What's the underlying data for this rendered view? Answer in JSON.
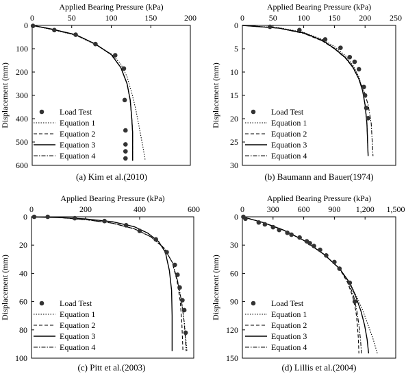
{
  "figure": {
    "marker_color": "#333333",
    "line_color": "#000000"
  },
  "chart_data": [
    {
      "id": "a",
      "type": "scatter",
      "caption": "(a)  Kim et al.(2010)",
      "xlabel": "Applied Bearing Pressure (kPa)",
      "ylabel": "Displacement (mm)",
      "xlim": [
        0,
        200
      ],
      "ylim": [
        0,
        600
      ],
      "xticks": [
        "0",
        "50",
        "100",
        "150",
        "200"
      ],
      "yticks": [
        "0",
        "100",
        "200",
        "300",
        "400",
        "500",
        "600"
      ],
      "legend_entries": [
        "Load Test",
        "Equation 1",
        "Equation 2",
        "Equation 3",
        "Equation 4"
      ],
      "load_test": {
        "x": [
          1,
          28,
          55,
          80,
          105,
          116,
          117,
          118,
          118,
          118,
          118
        ],
        "y": [
          2,
          20,
          40,
          80,
          128,
          185,
          320,
          450,
          510,
          540,
          570
        ]
      },
      "series": [
        {
          "name": "Equation 1",
          "x": [
            0,
            25,
            55,
            80,
            100,
            112,
            120,
            126,
            131,
            135,
            140,
            143
          ],
          "y": [
            0,
            18,
            42,
            82,
            122,
            165,
            220,
            290,
            360,
            430,
            520,
            580
          ]
        },
        {
          "name": "Equation 2",
          "x": [
            0,
            25,
            55,
            80,
            100,
            112,
            120,
            124,
            126,
            127,
            127,
            127
          ],
          "y": [
            0,
            17,
            40,
            80,
            125,
            180,
            250,
            320,
            400,
            460,
            520,
            580
          ]
        },
        {
          "name": "Equation 3",
          "x": [
            0,
            25,
            55,
            80,
            100,
            112,
            120,
            124,
            126,
            127,
            127,
            127
          ],
          "y": [
            0,
            16,
            40,
            80,
            125,
            180,
            250,
            320,
            400,
            460,
            520,
            580
          ]
        },
        {
          "name": "Equation 4",
          "x": [
            0,
            25,
            55,
            80,
            100,
            112,
            120,
            124,
            126,
            127,
            127,
            127
          ],
          "y": [
            0,
            17,
            41,
            81,
            126,
            181,
            251,
            321,
            401,
            461,
            521,
            581
          ]
        }
      ]
    },
    {
      "id": "b",
      "type": "scatter",
      "caption": "(b)  Baumann  and  Bauer(1974)",
      "xlabel": "Applied Bearing Pressure (kPa)",
      "ylabel": "Displacement (mm)",
      "xlim": [
        0,
        250
      ],
      "ylim": [
        0,
        30
      ],
      "xticks": [
        "0",
        "50",
        "100",
        "150",
        "200",
        "250"
      ],
      "yticks": [
        "0",
        "5",
        "10",
        "15",
        "20",
        "25",
        "30"
      ],
      "legend_entries": [
        "Load Test",
        "Equation 1",
        "Equation 2",
        "Equation 3",
        "Equation 4"
      ],
      "load_test": {
        "x": [
          45,
          93,
          135,
          160,
          175,
          183,
          190,
          198,
          200,
          202,
          205
        ],
        "y": [
          0.3,
          1.0,
          3.0,
          4.8,
          6.8,
          7.8,
          9.4,
          13.2,
          15.0,
          17.7,
          19.9
        ]
      },
      "series": [
        {
          "name": "Equation 1",
          "x": [
            0,
            60,
            100,
            130,
            150,
            168,
            180,
            190,
            196,
            200,
            203,
            205
          ],
          "y": [
            0,
            0.5,
            1.5,
            3.0,
            4.5,
            6.5,
            8.5,
            11.0,
            14.0,
            17.0,
            21.0,
            28.0
          ]
        },
        {
          "name": "Equation 2",
          "x": [
            0,
            60,
            100,
            130,
            150,
            168,
            180,
            190,
            196,
            200,
            203,
            205
          ],
          "y": [
            0,
            0.6,
            1.7,
            3.3,
            5.0,
            7.0,
            9.0,
            11.5,
            14.0,
            17.0,
            21.0,
            28.0
          ]
        },
        {
          "name": "Equation 3",
          "x": [
            0,
            60,
            100,
            130,
            150,
            168,
            180,
            190,
            196,
            200,
            203,
            205
          ],
          "y": [
            0,
            0.6,
            1.6,
            3.2,
            4.9,
            6.9,
            8.9,
            11.5,
            14.0,
            17.0,
            21.0,
            28.0
          ]
        },
        {
          "name": "Equation 4",
          "x": [
            0,
            60,
            100,
            130,
            150,
            168,
            180,
            190,
            198,
            205,
            210,
            213
          ],
          "y": [
            0,
            0.6,
            1.7,
            3.3,
            5.0,
            7.0,
            9.0,
            11.5,
            14.0,
            17.0,
            21.0,
            28.0
          ]
        }
      ]
    },
    {
      "id": "c",
      "type": "scatter",
      "caption": "(c)  Pitt et al.(2003)",
      "xlabel": "Applied Bearing Pressure (kPa)",
      "ylabel": "Displacement (mm)",
      "xlim": [
        0,
        600
      ],
      "ylim": [
        0,
        100
      ],
      "xticks": [
        "0",
        "200",
        "400",
        "600"
      ],
      "yticks": [
        "0",
        "20",
        "40",
        "60",
        "80",
        "100"
      ],
      "legend_entries": [
        "Load Test",
        "Equation 1",
        "Equation 2",
        "Equation 3",
        "Equation 4"
      ],
      "load_test": {
        "x": [
          10,
          60,
          160,
          270,
          350,
          400,
          460,
          500,
          530,
          540,
          548,
          558,
          565,
          570
        ],
        "y": [
          0,
          0,
          1,
          3,
          6,
          10,
          16,
          25,
          34,
          41,
          50,
          59,
          66,
          82
        ]
      },
      "series": [
        {
          "name": "Equation 1",
          "x": [
            0,
            100,
            200,
            300,
            380,
            440,
            490,
            520,
            540,
            555,
            565,
            575
          ],
          "y": [
            0,
            0.5,
            2,
            4.5,
            8.5,
            14,
            22,
            32,
            45,
            60,
            75,
            95
          ]
        },
        {
          "name": "Equation 2",
          "x": [
            0,
            100,
            200,
            300,
            380,
            440,
            490,
            520,
            538,
            550,
            556,
            560
          ],
          "y": [
            0,
            0.5,
            2,
            4.5,
            8.5,
            14,
            22,
            32,
            45,
            60,
            75,
            95
          ]
        },
        {
          "name": "Equation 3",
          "x": [
            0,
            100,
            200,
            300,
            380,
            430,
            470,
            495,
            510,
            518,
            520,
            520
          ],
          "y": [
            0,
            0.5,
            1.5,
            3.5,
            7,
            11.5,
            17.5,
            25,
            38,
            52,
            70,
            95
          ]
        },
        {
          "name": "Equation 4",
          "x": [
            0,
            100,
            200,
            300,
            380,
            440,
            490,
            520,
            540,
            555,
            565,
            572
          ],
          "y": [
            0,
            0.5,
            2,
            4.5,
            8.5,
            14,
            22,
            32,
            45,
            60,
            75,
            95
          ]
        }
      ]
    },
    {
      "id": "d",
      "type": "scatter",
      "caption": "(d)  Lillis et al.(2004)",
      "xlabel": "Applied Bearing Pressure (kPa)",
      "ylabel": "Displacement (mm)",
      "xlim": [
        0,
        1500
      ],
      "ylim": [
        0,
        150
      ],
      "xticks": [
        "0",
        "300",
        "600",
        "900",
        "1,200",
        "1,500"
      ],
      "yticks": [
        "0",
        "30",
        "60",
        "90",
        "120",
        "150"
      ],
      "legend_entries": [
        "Load Test",
        "Equation 1",
        "Equation 2",
        "Equation 3",
        "Equation 4"
      ],
      "load_test": {
        "x": [
          10,
          30,
          160,
          220,
          300,
          360,
          440,
          480,
          560,
          630,
          660,
          700,
          760,
          820,
          900,
          950,
          1050,
          1100
        ],
        "y": [
          0,
          2,
          6,
          8,
          11,
          14,
          17,
          19,
          22,
          26,
          28,
          31,
          35,
          41,
          48,
          55,
          70,
          90
        ]
      },
      "series": [
        {
          "name": "Equation 1",
          "x": [
            0,
            200,
            400,
            600,
            800,
            950,
            1050,
            1120,
            1180,
            1230,
            1280,
            1320
          ],
          "y": [
            0,
            6,
            14,
            25,
            40,
            55,
            70,
            85,
            100,
            115,
            130,
            145
          ]
        },
        {
          "name": "Equation 2",
          "x": [
            0,
            200,
            400,
            600,
            800,
            950,
            1030,
            1080,
            1110,
            1125,
            1135,
            1140
          ],
          "y": [
            0,
            6,
            14,
            25,
            40,
            55,
            70,
            85,
            100,
            115,
            130,
            145
          ]
        },
        {
          "name": "Equation 3",
          "x": [
            0,
            200,
            400,
            600,
            800,
            950,
            1050,
            1110,
            1160,
            1195,
            1220,
            1235
          ],
          "y": [
            0,
            6,
            14,
            25,
            40,
            55,
            70,
            85,
            100,
            115,
            130,
            145
          ]
        },
        {
          "name": "Equation 4",
          "x": [
            0,
            200,
            400,
            600,
            800,
            950,
            1040,
            1090,
            1120,
            1140,
            1155,
            1165
          ],
          "y": [
            0,
            6,
            14,
            25,
            40,
            55,
            70,
            85,
            100,
            115,
            130,
            145
          ]
        }
      ]
    }
  ]
}
